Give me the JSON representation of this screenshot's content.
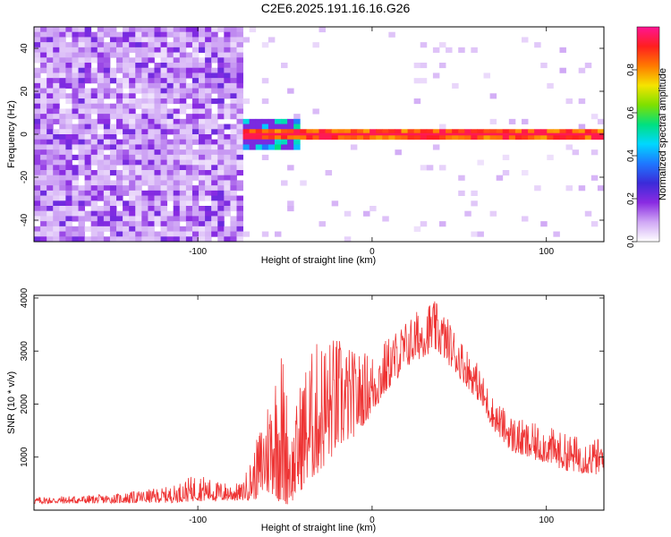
{
  "figure_title": "C2E6.2025.191.16.16.G26",
  "colors": {
    "snr_line": "#ee3333",
    "colormap": [
      "#ffffff",
      "#d0a8f5",
      "#8a2be2",
      "#3b2bd9",
      "#1e78ff",
      "#00d8ff",
      "#00e080",
      "#7ee000",
      "#f5e400",
      "#ff7a00",
      "#ff1f1f",
      "#ff1493"
    ]
  },
  "chart_data": [
    {
      "type": "heatmap",
      "title": "",
      "xlabel": "Height of straight line (km)",
      "ylabel": "Frequency (Hz)",
      "xlim": [
        -194,
        133
      ],
      "ylim": [
        -50,
        50
      ],
      "x_ticks": [
        "-100",
        "0",
        "100"
      ],
      "y_ticks": [
        "-40",
        "-20",
        "0",
        "20",
        "40"
      ],
      "colorbar": {
        "label": "Normalized spectral amplitude",
        "range": [
          0,
          1
        ],
        "ticks": [
          "0.0",
          "0.2",
          "0.4",
          "0.6",
          "0.8"
        ]
      },
      "features": {
        "noise_region_x": [
          -194,
          -73
        ],
        "signal_line_frequency_hz": 0,
        "signal_start_x": -73,
        "peak_amplitude": 0.95
      }
    },
    {
      "type": "line",
      "title": "",
      "xlabel": "Height of straight line (km)",
      "ylabel": "SNR (10 * v/v)",
      "xlim": [
        -194,
        133
      ],
      "ylim": [
        0,
        4050
      ],
      "x_ticks": [
        "-100",
        "0",
        "100"
      ],
      "y_ticks": [
        "1000",
        "2000",
        "3000",
        "4000"
      ],
      "series": [
        {
          "envelope": {
            "x": [
              -194,
              -150,
              -115,
              -100,
              -90,
              -75,
              -68,
              -62,
              -56,
              -52,
              -46,
              -40,
              -30,
              -20,
              -10,
              0,
              10,
              20,
              30,
              35,
              40,
              50,
              60,
              70,
              80,
              90,
              100,
              110,
              120,
              133
            ],
            "low": [
              120,
              130,
              140,
              170,
              160,
              180,
              200,
              250,
              300,
              50,
              150,
              400,
              700,
              1100,
              1400,
              1800,
              2300,
              2700,
              2900,
              3000,
              2900,
              2500,
              2100,
              1500,
              1100,
              950,
              900,
              750,
              700,
              650
            ],
            "high": [
              250,
              300,
              450,
              700,
              550,
              500,
              1100,
              1900,
              2700,
              3200,
              1500,
              2700,
              3300,
              3300,
              3000,
              3000,
              3300,
              3600,
              3900,
              3980,
              3800,
              3300,
              2800,
              2100,
              1800,
              1650,
              1600,
              1450,
              1400,
              1350
            ]
          }
        }
      ]
    }
  ]
}
